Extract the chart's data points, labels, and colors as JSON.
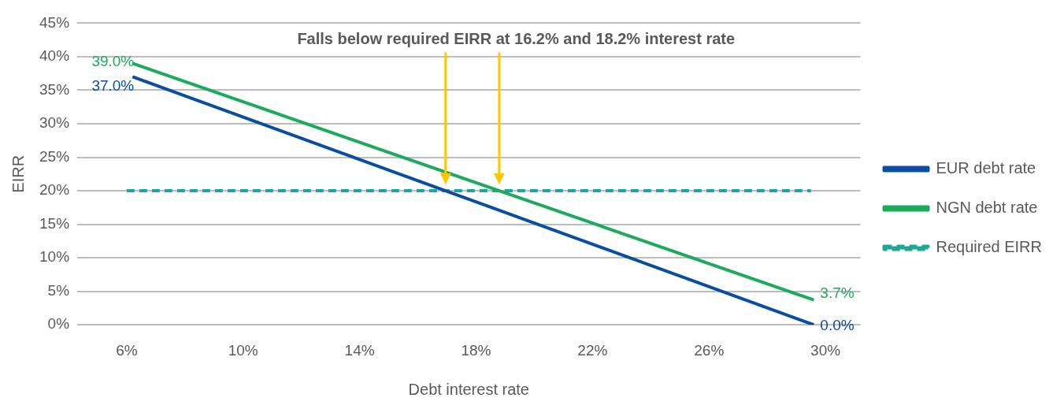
{
  "chart_data": {
    "type": "line",
    "xlabel": "Debt interest rate",
    "ylabel": "EIRR",
    "annotations": [
      "Falls below required EIRR at 16.2% and 18.2% interest rate"
    ],
    "xlim": [
      4.3,
      31.2
    ],
    "xticks": [
      {
        "value": 6,
        "label": "6%"
      },
      {
        "value": 10,
        "label": "10%"
      },
      {
        "value": 14,
        "label": "14%"
      },
      {
        "value": 18,
        "label": "18%"
      },
      {
        "value": 22,
        "label": "22%"
      },
      {
        "value": 26,
        "label": "26%"
      },
      {
        "value": 30,
        "label": "30%"
      }
    ],
    "ylim": [
      0,
      45
    ],
    "yticks": [
      {
        "value": 0,
        "label": "0%"
      },
      {
        "value": 5,
        "label": "5%"
      },
      {
        "value": 10,
        "label": "10%"
      },
      {
        "value": 15,
        "label": "15%"
      },
      {
        "value": 20,
        "label": "20%"
      },
      {
        "value": 25,
        "label": "25%"
      },
      {
        "value": 30,
        "label": "30%"
      },
      {
        "value": 35,
        "label": "35%"
      },
      {
        "value": 40,
        "label": "40%"
      },
      {
        "value": 45,
        "label": "45%"
      }
    ],
    "grid": "y",
    "legend": "right",
    "marker": "none",
    "series": [
      {
        "name": "EUR debt rate",
        "color": "#0a4ea3",
        "x": [
          6.2,
          29.6
        ],
        "values": [
          37.0,
          0.0
        ],
        "value_labels": [
          "37.0%",
          "0.0%"
        ]
      },
      {
        "name": "NGN debt rate",
        "color": "#1bab5a",
        "x": [
          6.2,
          29.6
        ],
        "values": [
          39.0,
          3.7
        ],
        "value_labels": [
          "39.0%",
          "3.7%"
        ]
      },
      {
        "name": "Required EIRR",
        "color": "#1aa89a",
        "x": [
          6.0,
          29.5
        ],
        "values": [
          20,
          20
        ],
        "line_style": "dashed"
      }
    ]
  }
}
